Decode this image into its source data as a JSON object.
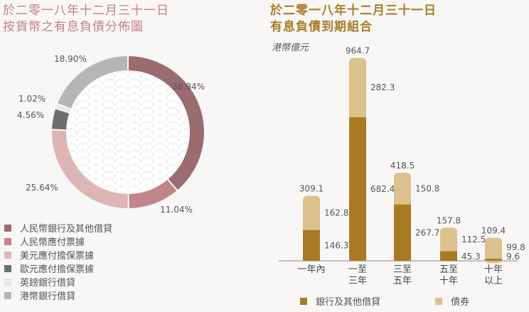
{
  "left_panel": {
    "title_line1": "於二零一八年十二月三十一日",
    "title_line2": "按貨幣之有息負債分佈圖"
  },
  "right_panel": {
    "title_line1": "於二零一八年十二月三十一日",
    "title_line2": "有息負債到期組合",
    "unit": "港幣億元"
  },
  "chart_data": [
    {
      "type": "pie",
      "variant": "donut",
      "title": "按貨幣之有息負債分佈圖",
      "slices": [
        {
          "label": "人民幣銀行及其他借貸",
          "value": 38.84,
          "display": "38.84%",
          "color": "#9b6b72"
        },
        {
          "label": "人民幣應付票據",
          "value": 11.04,
          "display": "11.04%",
          "color": "#c2848b"
        },
        {
          "label": "美元應付擔保票據",
          "value": 25.64,
          "display": "25.64%",
          "color": "#dcb6b7"
        },
        {
          "label": "歐元應付擔保票據",
          "value": 4.56,
          "display": "4.56%",
          "color": "#6e6e6e"
        },
        {
          "label": "英鎊銀行借貸",
          "value": 1.02,
          "display": "1.02%",
          "color": "#e8e8e8"
        },
        {
          "label": "港幣銀行借貸",
          "value": 18.9,
          "display": "18.90%",
          "color": "#b5b5b5"
        }
      ],
      "legend_position": "bottom-left"
    },
    {
      "type": "bar",
      "stacked": true,
      "title": "有息負債到期組合",
      "unit": "港幣億元",
      "categories": [
        [
          "一年內"
        ],
        [
          "一至",
          "三年"
        ],
        [
          "三至",
          "五年"
        ],
        [
          "五至",
          "十年"
        ],
        [
          "十年",
          "以上"
        ]
      ],
      "series": [
        {
          "name": "銀行及其他借貸",
          "values": [
            146.3,
            682.4,
            267.7,
            45.3,
            9.6
          ],
          "color": "#a87a23"
        },
        {
          "name": "債券",
          "values": [
            162.8,
            282.3,
            150.8,
            112.5,
            99.8
          ],
          "color": "#dcc08e"
        }
      ],
      "totals": [
        309.1,
        964.7,
        418.5,
        157.8,
        109.4
      ],
      "labels": {
        "bottom": [
          "146.3",
          "682.4",
          "267.7",
          "45.3",
          "9.6"
        ],
        "top": [
          "162.8",
          "282.3",
          "150.8",
          "112.5",
          "99.8"
        ],
        "total": [
          "309.1",
          "964.7",
          "418.5",
          "157.8",
          "109.4"
        ]
      },
      "legend_position": "bottom"
    }
  ]
}
